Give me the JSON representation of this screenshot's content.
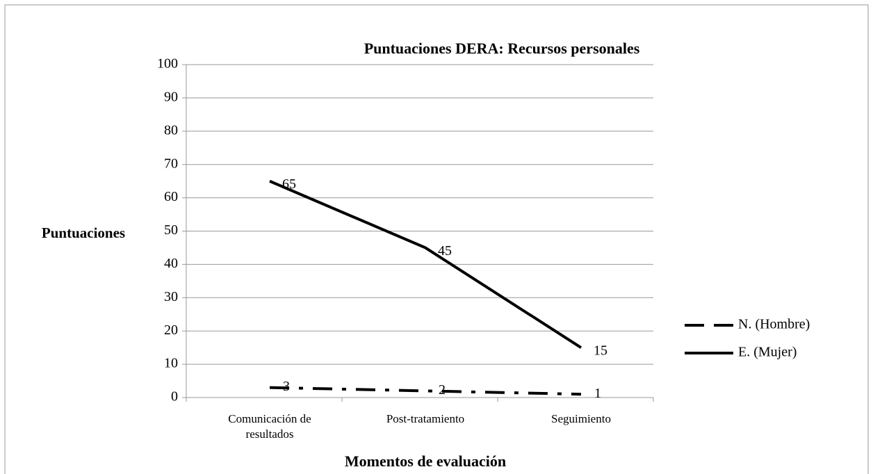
{
  "chart_data": {
    "type": "line",
    "title": "Puntuaciones DERA: Recursos personales",
    "y_label": "Puntuaciones",
    "x_label": "Momentos de evaluación",
    "categories": [
      "Comunicación de resultados",
      "Post-tratamiento",
      "Seguimiento"
    ],
    "series": [
      {
        "name": "N. (Hombre)",
        "color": "#000000",
        "style": "dashdot",
        "values": [
          3,
          2,
          1
        ]
      },
      {
        "name": "E. (Mujer)",
        "color": "#000000",
        "style": "solid",
        "values": [
          65,
          45,
          15
        ]
      }
    ],
    "ylim": [
      0,
      100
    ],
    "yticks": [
      0,
      10,
      20,
      30,
      40,
      50,
      60,
      70,
      80,
      90,
      100
    ],
    "grid": true,
    "legend": "right"
  }
}
